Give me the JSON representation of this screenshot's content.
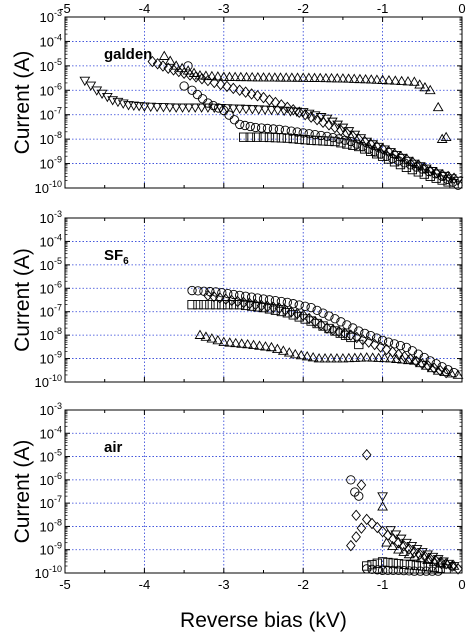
{
  "chart_data": [
    {
      "type": "scatter",
      "panel_label": "galden",
      "ylabel": "Current (A)",
      "xlim": [
        -5,
        0
      ],
      "ylim_exp": [
        -10,
        -3
      ],
      "yscale": "log",
      "grid": true,
      "x_ticks_top": [
        "-5",
        "-4",
        "-3",
        "-2",
        "-1",
        "0"
      ],
      "y_ticks": [
        "10",
        "10",
        "10",
        "10",
        "10",
        "10",
        "10",
        "10"
      ],
      "y_tick_exps": [
        "-10",
        "-9",
        "-8",
        "-7",
        "-6",
        "-5",
        "-4",
        "-3"
      ],
      "series": [
        {
          "marker": "triangle-down",
          "points": [
            [
              -4.75,
              2.5e-06
            ],
            [
              -4.6,
              1e-06
            ],
            [
              -4.4,
              4e-07
            ],
            [
              -4.2,
              2.5e-07
            ],
            [
              -4.0,
              2.2e-07
            ],
            [
              -3.6,
              2e-07
            ],
            [
              -3.2,
              2e-07
            ],
            [
              -2.8,
              1.8e-07
            ],
            [
              -2.4,
              1.6e-07
            ],
            [
              -2.0,
              1.3e-07
            ],
            [
              -1.7,
              7e-08
            ],
            [
              -1.5,
              3e-08
            ],
            [
              -1.2,
              8e-09
            ],
            [
              -0.9,
              3e-09
            ],
            [
              -0.6,
              1e-09
            ],
            [
              -0.3,
              4e-10
            ],
            [
              -0.05,
              2e-10
            ]
          ]
        },
        {
          "marker": "triangle-up",
          "points": [
            [
              -3.75,
              2.5e-05
            ],
            [
              -3.6,
              1e-05
            ],
            [
              -3.3,
              4e-06
            ],
            [
              -3.0,
              3.5e-06
            ],
            [
              -2.5,
              3.3e-06
            ],
            [
              -2.0,
              3.2e-06
            ],
            [
              -1.5,
              3e-06
            ],
            [
              -1.0,
              2.6e-06
            ],
            [
              -0.6,
              2.2e-06
            ],
            [
              -0.4,
              1e-06
            ],
            [
              -0.3,
              2e-07
            ],
            [
              -0.25,
              1e-08
            ],
            [
              -0.2,
              1.2e-08
            ]
          ]
        },
        {
          "marker": "diamond",
          "points": [
            [
              -3.9,
              1.5e-05
            ],
            [
              -3.7,
              8e-06
            ],
            [
              -3.5,
              5e-06
            ],
            [
              -3.2,
              2.5e-06
            ],
            [
              -2.8,
              1e-06
            ],
            [
              -2.5,
              5e-07
            ],
            [
              -2.2,
              2e-07
            ],
            [
              -1.9,
              8e-08
            ],
            [
              -1.6,
              3e-08
            ],
            [
              -1.3,
              1e-08
            ],
            [
              -1.0,
              4e-09
            ],
            [
              -0.7,
              1.5e-09
            ],
            [
              -0.4,
              5e-10
            ],
            [
              -0.1,
              2.5e-10
            ]
          ]
        },
        {
          "marker": "circle",
          "points": [
            [
              -3.45,
              1e-05
            ],
            [
              -3.5,
              1.5e-06
            ],
            [
              -3.4,
              1e-06
            ],
            [
              -3.2,
              3e-07
            ],
            [
              -3.0,
              1.5e-07
            ],
            [
              -2.8,
              4e-08
            ],
            [
              -2.6,
              3e-08
            ],
            [
              -2.3,
              2.5e-08
            ],
            [
              -2.0,
              1.8e-08
            ],
            [
              -1.7,
              1.3e-08
            ],
            [
              -1.4,
              8e-09
            ],
            [
              -1.1,
              3e-09
            ],
            [
              -0.8,
              1.3e-09
            ],
            [
              -0.5,
              6e-10
            ],
            [
              -0.25,
              3e-10
            ],
            [
              -0.05,
              1.3e-10
            ]
          ]
        },
        {
          "marker": "square",
          "points": [
            [
              -2.75,
              1.2e-08
            ],
            [
              -2.5,
              1.2e-08
            ],
            [
              -2.2,
              1.1e-08
            ],
            [
              -1.9,
              9e-09
            ],
            [
              -1.6,
              8e-09
            ],
            [
              -1.3,
              5e-09
            ],
            [
              -1.0,
              2e-09
            ],
            [
              -0.7,
              7e-10
            ],
            [
              -0.4,
              3e-10
            ],
            [
              -0.1,
              1.5e-10
            ]
          ]
        }
      ]
    },
    {
      "type": "scatter",
      "panel_label": "SF",
      "panel_label_sub": "6",
      "ylabel": "Current (A)",
      "xlim": [
        -5,
        0
      ],
      "ylim_exp": [
        -10,
        -3
      ],
      "yscale": "log",
      "grid": true,
      "y_ticks": [
        "10",
        "10",
        "10",
        "10",
        "10",
        "10",
        "10",
        "10"
      ],
      "y_tick_exps": [
        "-10",
        "-9",
        "-8",
        "-7",
        "-6",
        "-5",
        "-4",
        "-3"
      ],
      "series": [
        {
          "marker": "circle",
          "points": [
            [
              -3.4,
              8e-07
            ],
            [
              -3.1,
              7e-07
            ],
            [
              -2.8,
              5e-07
            ],
            [
              -2.5,
              3.5e-07
            ],
            [
              -2.2,
              2.5e-07
            ],
            [
              -1.9,
              1.5e-07
            ],
            [
              -1.6,
              5e-08
            ],
            [
              -1.3,
              1.5e-08
            ],
            [
              -1.0,
              6e-09
            ],
            [
              -0.7,
              3e-09
            ],
            [
              -0.4,
              8e-10
            ],
            [
              -0.1,
              2.5e-10
            ]
          ]
        },
        {
          "marker": "diamond",
          "points": [
            [
              -3.2,
              5e-07
            ],
            [
              -2.9,
              3e-07
            ],
            [
              -2.6,
              2e-07
            ],
            [
              -2.3,
              1.4e-07
            ],
            [
              -2.0,
              7e-08
            ],
            [
              -1.7,
              2e-08
            ],
            [
              -1.4,
              1e-08
            ],
            [
              -1.1,
              4e-09
            ],
            [
              -0.8,
              1.5e-09
            ],
            [
              -0.5,
              6e-10
            ],
            [
              -0.2,
              2.5e-10
            ]
          ]
        },
        {
          "marker": "square",
          "points": [
            [
              -3.4,
              2e-07
            ],
            [
              -3.1,
              2e-07
            ],
            [
              -2.8,
              2e-07
            ],
            [
              -2.5,
              1.5e-07
            ],
            [
              -2.2,
              9e-08
            ],
            [
              -1.9,
              4e-08
            ],
            [
              -1.6,
              1.5e-08
            ],
            [
              -1.4,
              8e-09
            ],
            [
              -1.3,
              4e-09
            ]
          ]
        },
        {
          "marker": "triangle-up",
          "points": [
            [
              -3.3,
              1e-08
            ],
            [
              -3.0,
              5e-09
            ],
            [
              -2.7,
              4e-09
            ],
            [
              -2.4,
              3e-09
            ],
            [
              -2.1,
              1.5e-09
            ],
            [
              -1.8,
              1e-09
            ],
            [
              -1.5,
              1e-09
            ],
            [
              -1.2,
              1.1e-09
            ],
            [
              -0.9,
              1e-09
            ],
            [
              -0.6,
              8e-10
            ],
            [
              -0.3,
              3e-10
            ],
            [
              -0.05,
              2e-10
            ]
          ]
        }
      ]
    },
    {
      "type": "scatter",
      "panel_label": "air",
      "ylabel": "Current (A)",
      "xlabel": "Reverse bias (kV)",
      "xlim": [
        -5,
        0
      ],
      "ylim_exp": [
        -10,
        -3
      ],
      "yscale": "log",
      "grid": true,
      "x_ticks_bottom": [
        "-5",
        "-4",
        "-3",
        "-2",
        "-1",
        "0"
      ],
      "y_ticks": [
        "10",
        "10",
        "10",
        "10",
        "10",
        "10",
        "10",
        "10"
      ],
      "y_tick_exps": [
        "-10",
        "-9",
        "-8",
        "-7",
        "-6",
        "-5",
        "-4",
        "-3"
      ],
      "series": [
        {
          "marker": "diamond",
          "points": [
            [
              -1.2,
              1.2e-05
            ],
            [
              -1.4,
              1.5e-09
            ],
            [
              -1.2,
              2e-08
            ],
            [
              -1.0,
              6e-09
            ],
            [
              -0.8,
              2e-09
            ],
            [
              -0.6,
              8e-10
            ],
            [
              -0.4,
              4e-10
            ],
            [
              -0.2,
              2.5e-10
            ],
            [
              -0.05,
              1.5e-10
            ]
          ]
        },
        {
          "marker": "circle",
          "points": [
            [
              -1.4,
              1e-06
            ],
            [
              -1.35,
              3e-07
            ],
            [
              -1.3,
              2e-07
            ],
            [
              -1.2,
              1.5e-10
            ],
            [
              -1.0,
              1.3e-10
            ],
            [
              -0.8,
              1.3e-10
            ],
            [
              -0.6,
              1.2e-10
            ],
            [
              -0.3,
              1.2e-10
            ]
          ]
        },
        {
          "marker": "triangle-down",
          "points": [
            [
              -1.0,
              2e-07
            ],
            [
              -0.9,
              7e-09
            ],
            [
              -0.7,
              2e-09
            ],
            [
              -0.5,
              8e-10
            ],
            [
              -0.3,
              4e-10
            ],
            [
              -0.1,
              2e-10
            ]
          ]
        },
        {
          "marker": "triangle-up",
          "points": [
            [
              -1.0,
              7e-08
            ],
            [
              -0.95,
              2e-09
            ],
            [
              -0.8,
              1e-09
            ],
            [
              -0.6,
              5e-10
            ],
            [
              -0.35,
              3e-10
            ],
            [
              -0.1,
              2e-10
            ]
          ]
        },
        {
          "marker": "square",
          "points": [
            [
              -1.2,
              2e-10
            ],
            [
              -1.0,
              3e-10
            ],
            [
              -0.8,
              2.5e-10
            ],
            [
              -0.5,
              2e-10
            ],
            [
              -0.2,
              1.5e-10
            ]
          ]
        }
      ]
    }
  ]
}
